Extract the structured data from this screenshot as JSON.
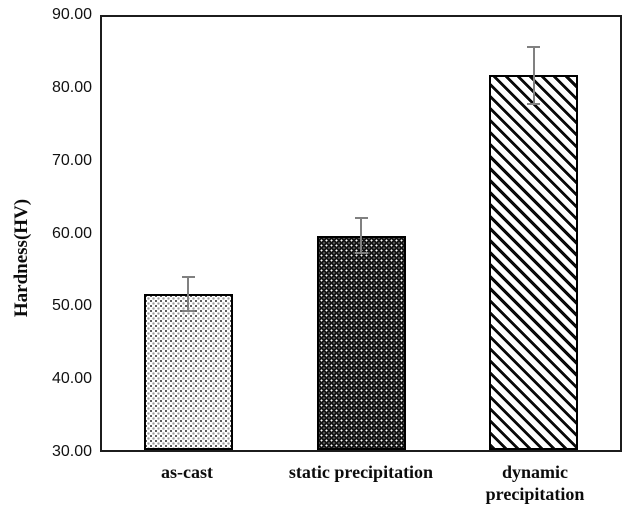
{
  "chart_data": {
    "type": "bar",
    "title": "",
    "xlabel": "",
    "ylabel": "Hardness(HV)",
    "ylim": [
      30,
      90
    ],
    "grid": false,
    "legend_position": "none",
    "yticks": [
      {
        "value": 30,
        "label": "30.00"
      },
      {
        "value": 40,
        "label": "40.00"
      },
      {
        "value": 50,
        "label": "50.00"
      },
      {
        "value": 60,
        "label": "60.00"
      },
      {
        "value": 70,
        "label": "70.00"
      },
      {
        "value": 80,
        "label": "80.00"
      },
      {
        "value": 90,
        "label": "90.00"
      }
    ],
    "categories": [
      "as-cast",
      "static precipitation",
      "dynamic\nprecipitation"
    ],
    "values": [
      51.7,
      59.7,
      81.7
    ],
    "errors": [
      2.5,
      2.5,
      4.0
    ],
    "bar_fills": [
      "light-stipple",
      "dark-stipple",
      "diagonal-hatch"
    ],
    "bar_border_color": "#000000",
    "error_bar_color": "#808080",
    "frame_color": "#1c1c1c",
    "background_color": "#ffffff"
  }
}
